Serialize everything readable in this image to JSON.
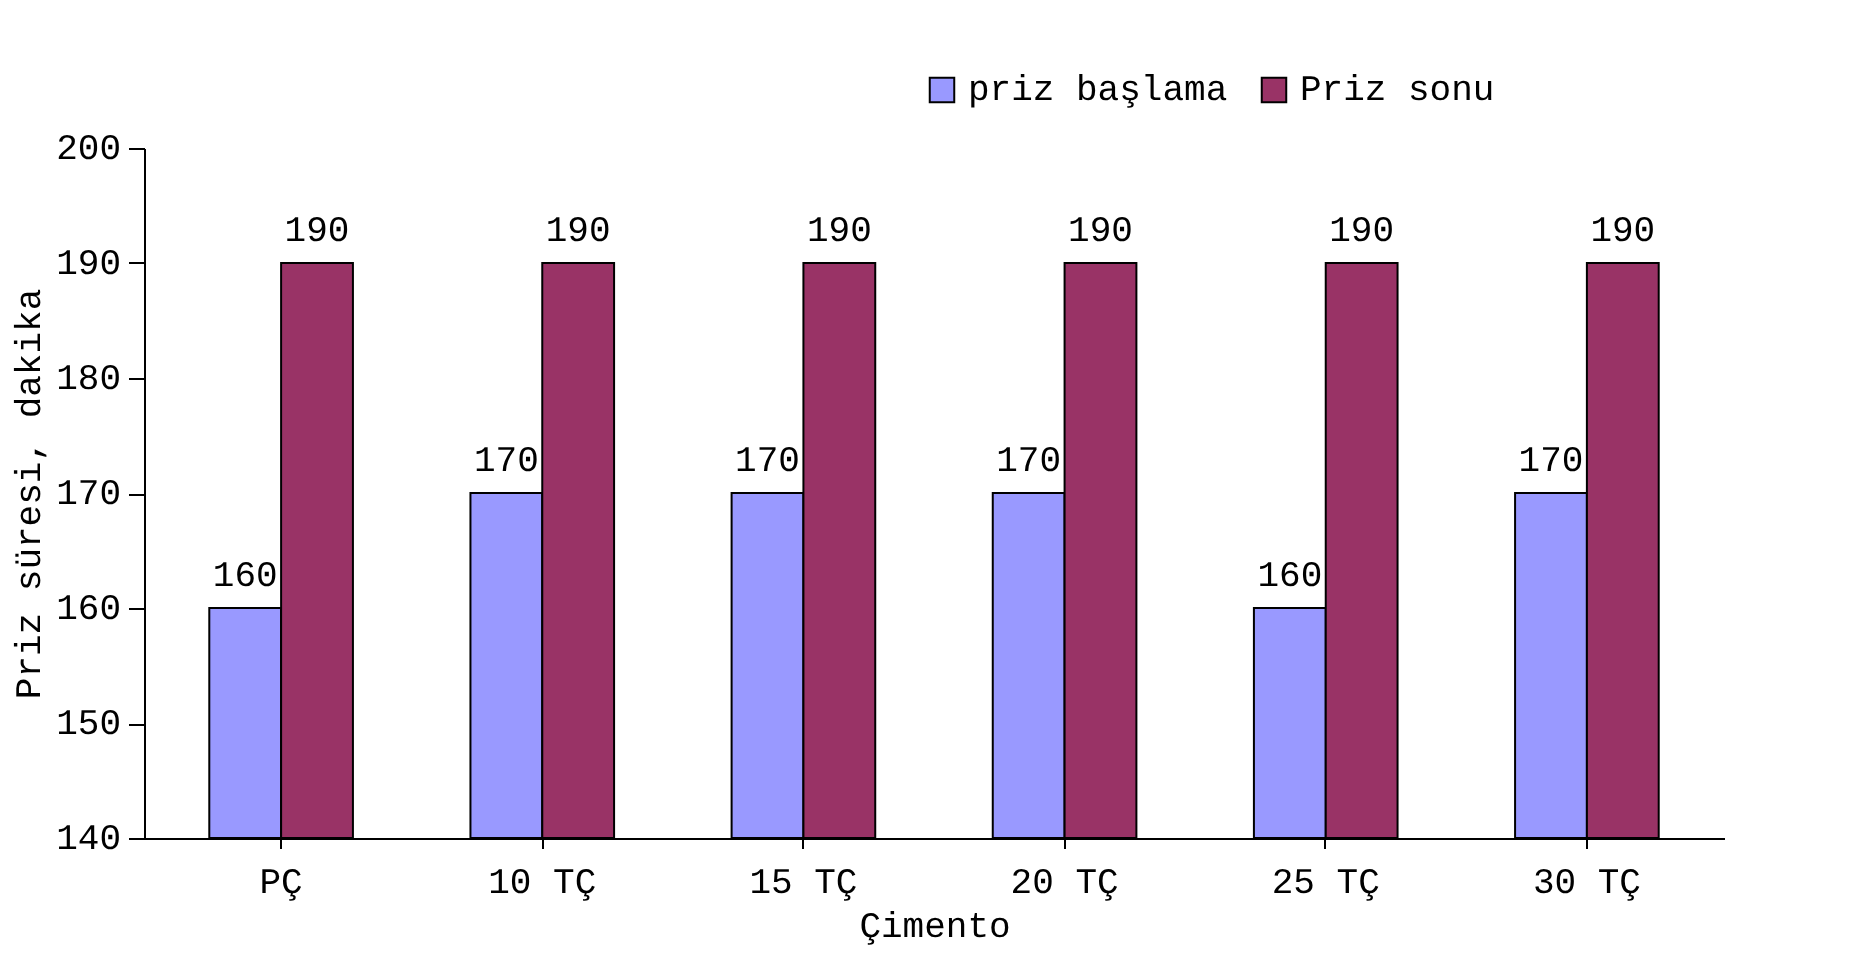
{
  "chart_data": {
    "type": "bar",
    "xlabel": "Çimento",
    "ylabel": "Priz süresi, dakika",
    "categories": [
      "PÇ",
      "10 TÇ",
      "15 TÇ",
      "20 TÇ",
      "25 TÇ",
      "30 TÇ"
    ],
    "series": [
      {
        "name": "priz başlama",
        "color": "#9999ff",
        "values": [
          160,
          170,
          170,
          170,
          160,
          170
        ]
      },
      {
        "name": "Priz sonu",
        "color": "#993366",
        "values": [
          190,
          190,
          190,
          190,
          190,
          190
        ]
      }
    ],
    "ylim": [
      140,
      200
    ],
    "yticks": [
      140,
      150,
      160,
      170,
      180,
      190,
      200
    ],
    "grid": false,
    "legend": "top right",
    "data_labels": true
  }
}
